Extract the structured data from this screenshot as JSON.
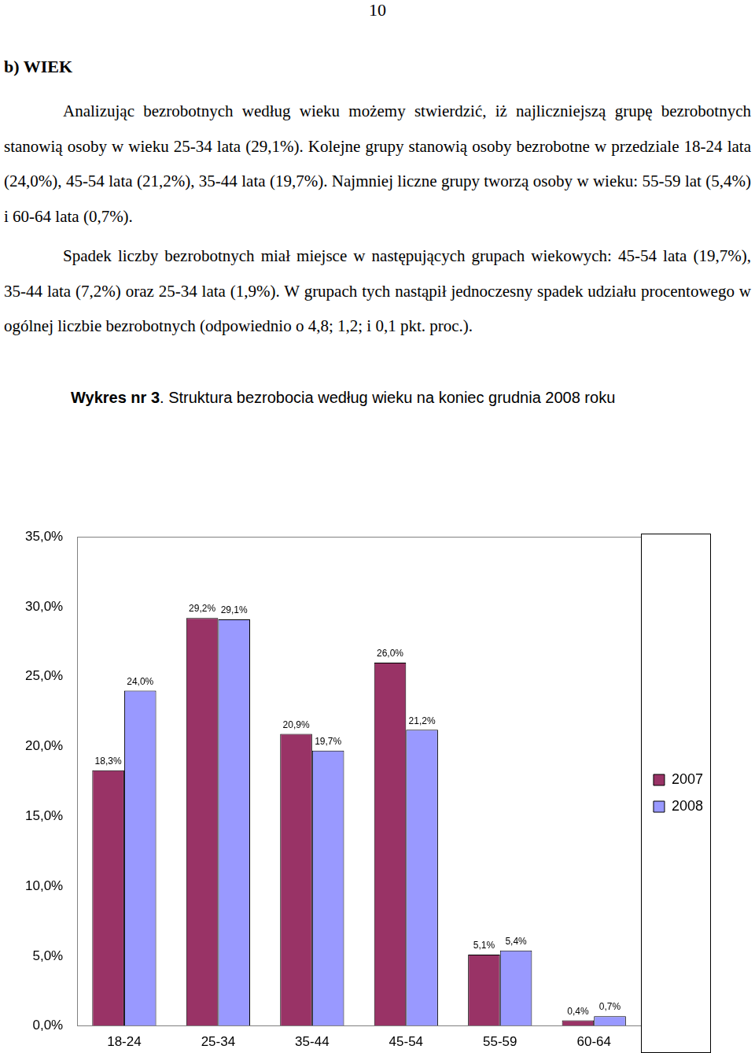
{
  "page_number": "10",
  "heading": "b) WIEK",
  "paragraphs": [
    "Analizując bezrobotnych według wieku możemy stwierdzić, iż najliczniejszą grupę bezrobotnych stanowią osoby w wieku 25-34 lata (29,1%). Kolejne grupy stanowią osoby bezrobotne w przedziale 18-24 lata (24,0%), 45-54 lata (21,2%), 35-44 lata (19,7%). Najmniej liczne grupy tworzą osoby w wieku: 55-59 lat (5,4%) i 60-64 lata (0,7%).",
    "Spadek liczby bezrobotnych miał miejsce w następujących grupach wiekowych: 45-54 lata (19,7%), 35-44 lata (7,2%) oraz 25-34 lata (1,9%). W grupach tych nastąpił jednoczesny spadek udziału procentowego w ogólnej liczbie bezrobotnych (odpowiednio o 4,8; 1,2; i 0,1 pkt. proc.)."
  ],
  "figure_caption": {
    "label": "Wykres nr 3",
    "text": ". Struktura bezrobocia według wieku na koniec grudnia 2008 roku"
  },
  "chart_data": {
    "type": "bar",
    "categories": [
      "18-24",
      "25-34",
      "35-44",
      "45-54",
      "55-59",
      "60-64"
    ],
    "series": [
      {
        "name": "2007",
        "color": "#993366",
        "values": [
          18.3,
          29.2,
          20.9,
          26.0,
          5.1,
          0.4
        ],
        "value_labels": [
          "18,3%",
          "29,2%",
          "20,9%",
          "26,0%",
          "5,1%",
          "0,4%"
        ]
      },
      {
        "name": "2008",
        "color": "#9999ff",
        "values": [
          24.0,
          29.1,
          19.7,
          21.2,
          5.4,
          0.7
        ],
        "value_labels": [
          "24,0%",
          "29,1%",
          "19,7%",
          "21,2%",
          "5,4%",
          "0,7%"
        ]
      }
    ],
    "ylim": [
      0,
      35
    ],
    "yticks": [
      {
        "value": 0,
        "label": "0,0%"
      },
      {
        "value": 5,
        "label": "5,0%"
      },
      {
        "value": 10,
        "label": "10,0%"
      },
      {
        "value": 15,
        "label": "15,0%"
      },
      {
        "value": 20,
        "label": "20,0%"
      },
      {
        "value": 25,
        "label": "25,0%"
      },
      {
        "value": 30,
        "label": "30,0%"
      },
      {
        "value": 35,
        "label": "35,0%"
      }
    ],
    "grid": false,
    "legend": "right",
    "data_labels": true
  }
}
